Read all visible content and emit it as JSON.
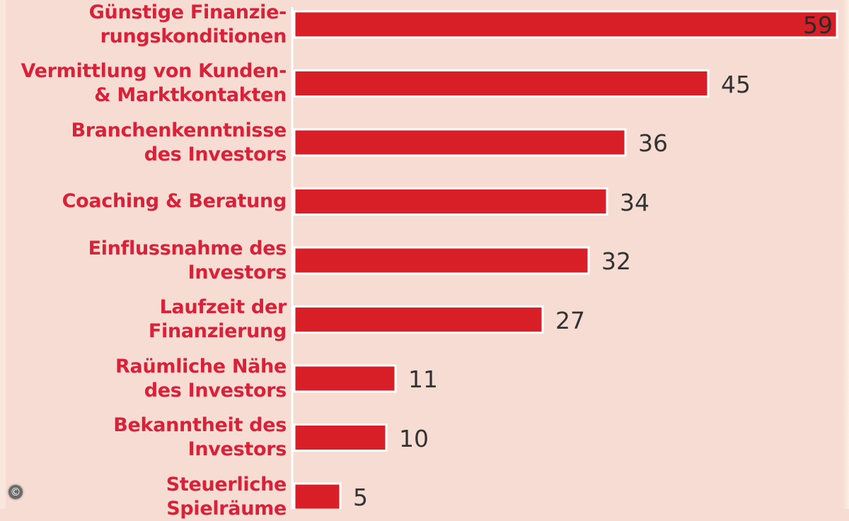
{
  "chart_data": {
    "type": "bar",
    "orientation": "horizontal",
    "title": "",
    "xlabel": "",
    "ylabel": "",
    "xlim": [
      0,
      59
    ],
    "grid": false,
    "categories": [
      "Günstige Finanzie-\nrungskonditionen",
      "Vermittlung von Kunden-\n& Marktkontakten",
      "Branchenkenntnisse\ndes Investors",
      "Coaching & Beratung",
      "Einflussnahme des\nInvestors",
      "Laufzeit der\nFinanzierung",
      "Raümliche Nähe\ndes Investors",
      "Bekanntheit des\nInvestors",
      "Steuerliche\nSpielräume"
    ],
    "values": [
      59,
      45,
      36,
      34,
      32,
      27,
      11,
      10,
      5
    ],
    "value_labels": [
      "59",
      "45",
      "36",
      "34",
      "32",
      "27",
      "11",
      "10",
      "5"
    ],
    "colors": {
      "bar": "#d81e27",
      "label": "#d7223a",
      "value": "#333333",
      "background": "#f6dcd3",
      "axis": "#ffffff"
    }
  },
  "copyright_symbol": "©"
}
